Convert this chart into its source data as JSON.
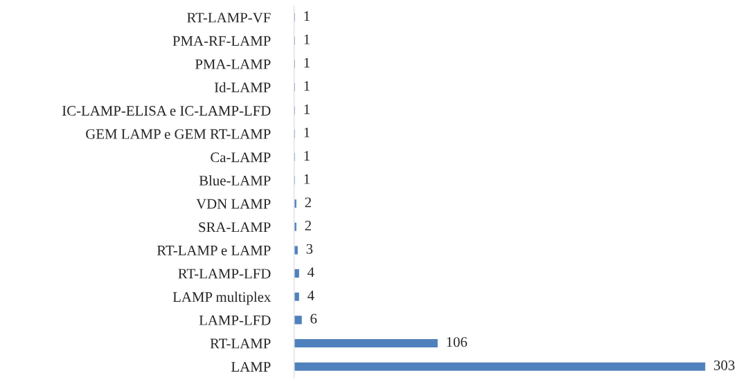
{
  "chart_data": {
    "type": "bar",
    "orientation": "horizontal",
    "categories": [
      "RT-LAMP-VF",
      "PMA-RF-LAMP",
      "PMA-LAMP",
      "Id-LAMP",
      "IC-LAMP-ELISA e IC-LAMP-LFD",
      "GEM LAMP e GEM RT-LAMP",
      "Ca-LAMP",
      "Blue-LAMP",
      "VDN LAMP",
      "SRA-LAMP",
      "RT-LAMP e LAMP",
      "RT-LAMP-LFD",
      "LAMP multiplex",
      "LAMP-LFD",
      "RT-LAMP",
      "LAMP"
    ],
    "values": [
      1,
      1,
      1,
      1,
      1,
      1,
      1,
      1,
      2,
      2,
      3,
      4,
      4,
      6,
      106,
      303
    ],
    "color": "#4f81bd",
    "data_labels": true,
    "grid": false,
    "legend": false,
    "tick_labels": "y"
  }
}
